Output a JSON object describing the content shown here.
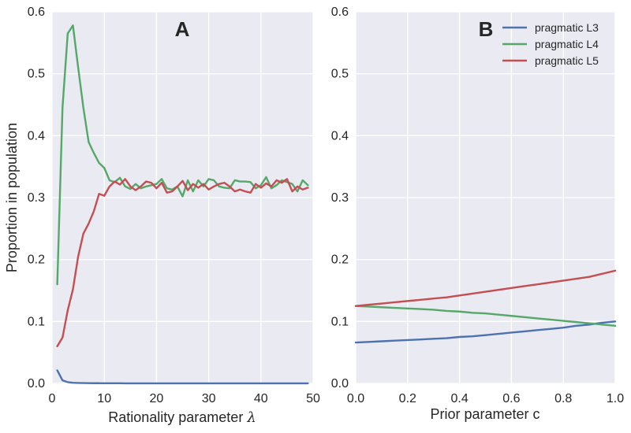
{
  "chart_data": [
    {
      "panel_label": "A",
      "type": "line",
      "xlabel": "Rationality parameter",
      "xlabel_symbol": "λ",
      "ylabel": "Proportion in population",
      "xlim": [
        0,
        50
      ],
      "ylim": [
        0,
        0.6
      ],
      "xticks": [
        "0",
        "10",
        "20",
        "30",
        "40",
        "50"
      ],
      "yticks": [
        "0.0",
        "0.1",
        "0.2",
        "0.3",
        "0.4",
        "0.5",
        "0.6"
      ],
      "grid": true,
      "series": [
        {
          "color": "#4c72b0",
          "x": [
            1,
            2,
            3,
            4,
            5,
            6,
            7,
            8,
            9,
            10,
            11,
            12,
            13,
            14,
            15,
            16,
            17,
            18,
            19,
            20,
            21,
            22,
            23,
            24,
            25,
            26,
            27,
            28,
            29,
            30,
            31,
            32,
            33,
            34,
            35,
            36,
            37,
            38,
            39,
            40,
            41,
            42,
            43,
            44,
            45,
            46,
            47,
            48,
            49
          ],
          "y": [
            0.021,
            0.005,
            0.002,
            0.001,
            0.0007,
            0.0005,
            0.0004,
            0.0003,
            0.0003,
            0.0002,
            0.0002,
            0.0002,
            0.0002,
            0.0001,
            0.0001,
            0.0001,
            0.0001,
            0.0001,
            0.0001,
            0.0001,
            0.0001,
            0.0001,
            0.0001,
            0.0001,
            0.0001,
            0.0001,
            0.0001,
            0.0001,
            0.0001,
            0.0001,
            0.0001,
            0.0001,
            0.0001,
            0.0001,
            0.0001,
            0.0001,
            0.0001,
            0.0001,
            0.0001,
            0.0001,
            0.0001,
            0.0001,
            0.0001,
            0.0001,
            0.0001,
            0.0001,
            0.0001,
            0.0001,
            0.0001
          ]
        },
        {
          "color": "#55a868",
          "x": [
            1,
            2,
            3,
            4,
            5,
            6,
            7,
            8,
            9,
            10,
            11,
            12,
            13,
            14,
            15,
            16,
            17,
            18,
            19,
            20,
            21,
            22,
            23,
            24,
            25,
            26,
            27,
            28,
            29,
            30,
            31,
            32,
            33,
            34,
            35,
            36,
            37,
            38,
            39,
            40,
            41,
            42,
            43,
            44,
            45,
            46,
            47,
            48,
            49
          ],
          "y": [
            0.16,
            0.445,
            0.565,
            0.578,
            0.51,
            0.445,
            0.39,
            0.372,
            0.356,
            0.348,
            0.328,
            0.325,
            0.332,
            0.318,
            0.314,
            0.322,
            0.315,
            0.318,
            0.32,
            0.322,
            0.33,
            0.315,
            0.313,
            0.318,
            0.302,
            0.328,
            0.31,
            0.328,
            0.318,
            0.33,
            0.328,
            0.318,
            0.316,
            0.315,
            0.328,
            0.326,
            0.326,
            0.325,
            0.315,
            0.32,
            0.333,
            0.315,
            0.32,
            0.328,
            0.325,
            0.322,
            0.31,
            0.328,
            0.32
          ]
        },
        {
          "color": "#c44e52",
          "x": [
            1,
            2,
            3,
            4,
            5,
            6,
            7,
            8,
            9,
            10,
            11,
            12,
            13,
            14,
            15,
            16,
            17,
            18,
            19,
            20,
            21,
            22,
            23,
            24,
            25,
            26,
            27,
            28,
            29,
            30,
            31,
            32,
            33,
            34,
            35,
            36,
            37,
            38,
            39,
            40,
            41,
            42,
            43,
            44,
            45,
            46,
            47,
            48,
            49
          ],
          "y": [
            0.06,
            0.074,
            0.118,
            0.152,
            0.205,
            0.242,
            0.258,
            0.278,
            0.306,
            0.303,
            0.318,
            0.326,
            0.321,
            0.33,
            0.318,
            0.312,
            0.318,
            0.326,
            0.324,
            0.315,
            0.324,
            0.308,
            0.31,
            0.318,
            0.327,
            0.312,
            0.322,
            0.316,
            0.322,
            0.313,
            0.318,
            0.322,
            0.324,
            0.318,
            0.31,
            0.313,
            0.31,
            0.308,
            0.322,
            0.316,
            0.323,
            0.318,
            0.328,
            0.324,
            0.33,
            0.31,
            0.318,
            0.313,
            0.316
          ]
        }
      ]
    },
    {
      "panel_label": "B",
      "type": "line",
      "xlabel": "Prior parameter c",
      "ylabel": "",
      "xlim": [
        0,
        1
      ],
      "ylim": [
        0,
        0.6
      ],
      "xticks": [
        "0.0",
        "0.2",
        "0.4",
        "0.6",
        "0.8",
        "1.0"
      ],
      "yticks": [
        "0.0",
        "0.1",
        "0.2",
        "0.3",
        "0.4",
        "0.5",
        "0.6"
      ],
      "grid": true,
      "legend_position": "top-right",
      "series": [
        {
          "name": "pragmatic L3",
          "color": "#4c72b0",
          "x": [
            0,
            0.05,
            0.1,
            0.15,
            0.2,
            0.25,
            0.3,
            0.35,
            0.4,
            0.45,
            0.5,
            0.55,
            0.6,
            0.65,
            0.7,
            0.75,
            0.8,
            0.85,
            0.9,
            0.95,
            1.0
          ],
          "y": [
            0.066,
            0.067,
            0.068,
            0.069,
            0.07,
            0.071,
            0.072,
            0.073,
            0.075,
            0.076,
            0.078,
            0.08,
            0.082,
            0.084,
            0.086,
            0.088,
            0.09,
            0.093,
            0.095,
            0.098,
            0.1
          ]
        },
        {
          "name": "pragmatic L4",
          "color": "#55a868",
          "x": [
            0,
            0.05,
            0.1,
            0.15,
            0.2,
            0.25,
            0.3,
            0.35,
            0.4,
            0.45,
            0.5,
            0.55,
            0.6,
            0.65,
            0.7,
            0.75,
            0.8,
            0.85,
            0.9,
            0.95,
            1.0
          ],
          "y": [
            0.125,
            0.124,
            0.123,
            0.122,
            0.121,
            0.12,
            0.119,
            0.117,
            0.116,
            0.114,
            0.113,
            0.111,
            0.109,
            0.107,
            0.105,
            0.103,
            0.101,
            0.099,
            0.097,
            0.095,
            0.093
          ]
        },
        {
          "name": "pragmatic L5",
          "color": "#c44e52",
          "x": [
            0,
            0.05,
            0.1,
            0.15,
            0.2,
            0.25,
            0.3,
            0.35,
            0.4,
            0.45,
            0.5,
            0.55,
            0.6,
            0.65,
            0.7,
            0.75,
            0.8,
            0.85,
            0.9,
            0.95,
            1.0
          ],
          "y": [
            0.125,
            0.127,
            0.129,
            0.131,
            0.133,
            0.135,
            0.137,
            0.139,
            0.142,
            0.145,
            0.148,
            0.151,
            0.154,
            0.157,
            0.16,
            0.163,
            0.166,
            0.169,
            0.172,
            0.177,
            0.182
          ]
        }
      ]
    }
  ]
}
